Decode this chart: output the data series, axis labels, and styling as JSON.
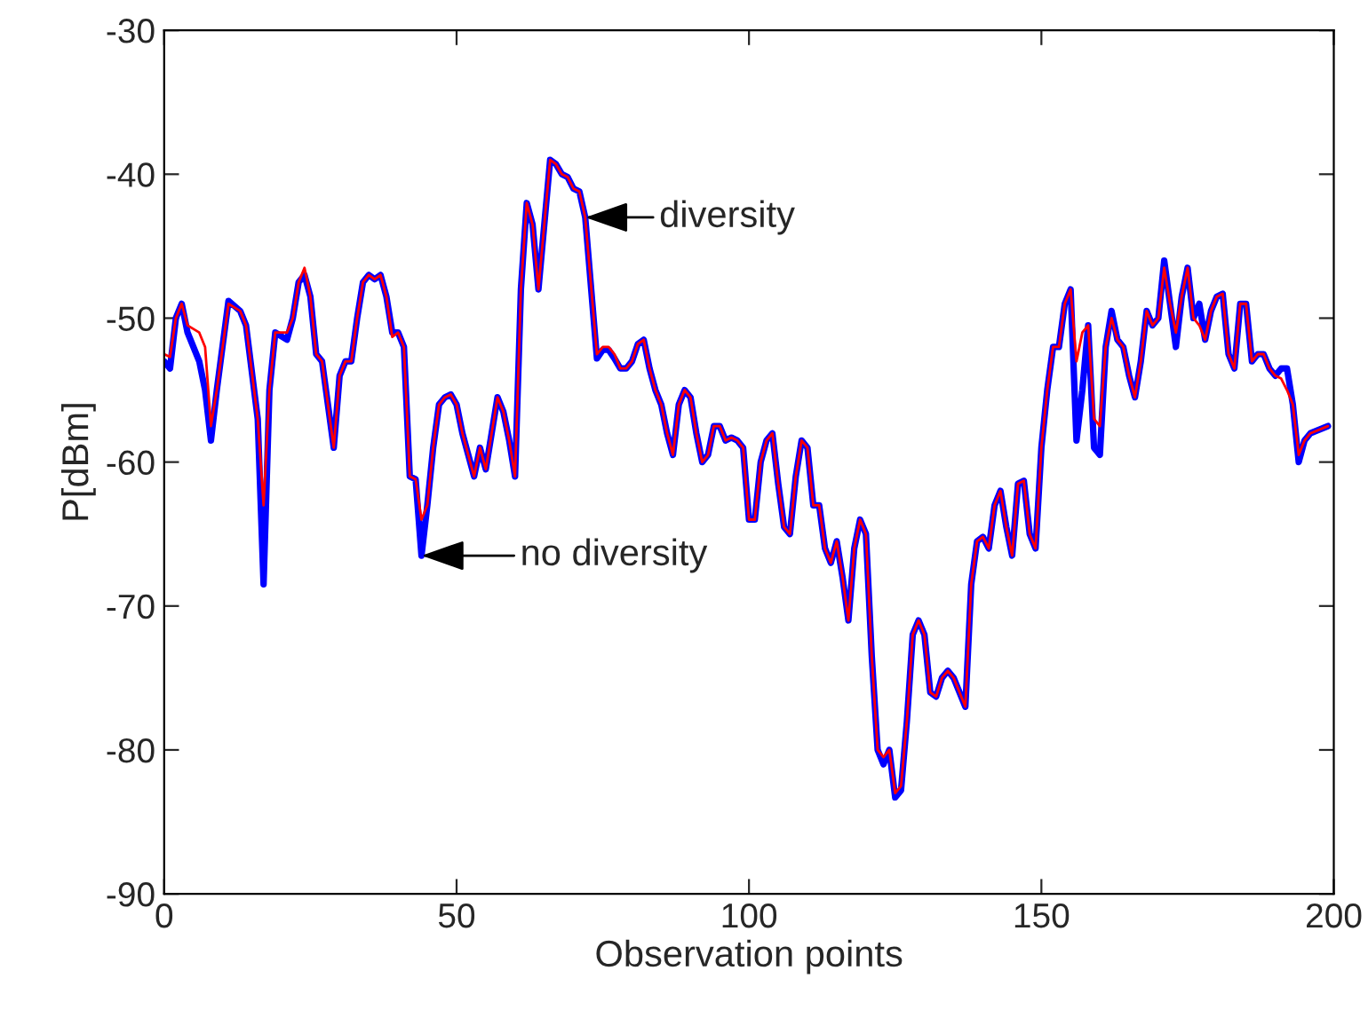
{
  "chart_data": {
    "type": "line",
    "xlabel": "Observation points",
    "ylabel": "P[dBm]",
    "x": [
      0,
      1,
      2,
      3,
      4,
      6,
      7,
      8,
      9,
      11,
      13,
      14,
      16,
      17,
      18,
      19,
      21,
      22,
      23,
      24,
      25,
      26,
      27,
      28,
      29,
      30,
      31,
      32,
      33,
      34,
      35,
      36,
      37,
      38,
      39,
      40,
      41,
      42,
      43,
      44,
      45,
      46,
      47,
      48,
      49,
      50,
      51,
      52,
      53,
      54,
      55,
      56,
      57,
      58,
      59,
      60,
      61,
      62,
      63,
      64,
      65,
      66,
      67,
      68,
      69,
      70,
      71,
      72,
      74,
      75,
      76,
      77,
      78,
      79,
      80,
      81,
      82,
      83,
      84,
      85,
      86,
      87,
      88,
      89,
      90,
      91,
      92,
      93,
      94,
      95,
      96,
      97,
      98,
      99,
      100,
      101,
      102,
      103,
      104,
      105,
      106,
      107,
      108,
      109,
      110,
      111,
      112,
      113,
      114,
      115,
      116,
      117,
      118,
      119,
      120,
      121,
      122,
      123,
      124,
      125,
      126,
      127,
      128,
      129,
      130,
      131,
      132,
      133,
      134,
      135,
      136,
      137,
      138,
      139,
      140,
      141,
      142,
      143,
      144,
      145,
      146,
      147,
      148,
      149,
      150,
      151,
      152,
      153,
      154,
      155,
      156,
      157,
      158,
      159,
      160,
      161,
      162,
      163,
      164,
      165,
      166,
      167,
      168,
      169,
      170,
      171,
      172,
      173,
      174,
      175,
      176,
      177,
      178,
      179,
      180,
      181,
      182,
      183,
      184,
      185,
      186,
      187,
      188,
      189,
      190,
      191,
      192,
      193,
      194,
      195,
      196,
      199
    ],
    "series": [
      {
        "color": "#0000ff",
        "values": [
          -53,
          -53.5,
          -50,
          -49,
          -51,
          -53,
          -55,
          -58.5,
          -55,
          -48.8,
          -49.5,
          -50.5,
          -57,
          -68.5,
          -55,
          -51,
          -51.5,
          -50,
          -47.5,
          -47,
          -48.5,
          -52.5,
          -53,
          -56,
          -59,
          -54,
          -53,
          -53,
          -50,
          -47.5,
          -47,
          -47.3,
          -47,
          -48.5,
          -51,
          -51,
          -52,
          -61,
          -61.2,
          -66.5,
          -63,
          -59,
          -56,
          -55.5,
          -55.3,
          -56,
          -58,
          -59.5,
          -61,
          -59,
          -60.5,
          -58,
          -55.5,
          -56.5,
          -58.5,
          -61,
          -48,
          -42,
          -43.5,
          -48,
          -43.5,
          -39,
          -39.3,
          -40,
          -40.2,
          -41,
          -41.2,
          -43,
          -52.8,
          -52.2,
          -52.2,
          -52.8,
          -53.5,
          -53.5,
          -53,
          -51.8,
          -51.5,
          -53.5,
          -55,
          -56,
          -58,
          -59.5,
          -56,
          -55,
          -55.5,
          -58,
          -60,
          -59.5,
          -57.5,
          -57.5,
          -58.5,
          -58.3,
          -58.5,
          -59,
          -64,
          -64,
          -60,
          -58.5,
          -58,
          -61.5,
          -64.5,
          -65,
          -61,
          -58.5,
          -59,
          -63,
          -63,
          -66,
          -67,
          -65.5,
          -68,
          -71,
          -66,
          -64,
          -65,
          -73.5,
          -80,
          -81,
          -80,
          -83.3,
          -82.8,
          -78,
          -72,
          -71,
          -72,
          -76,
          -76.3,
          -75,
          -74.5,
          -75,
          -76,
          -77,
          -68.5,
          -65.5,
          -65.2,
          -66,
          -63,
          -62,
          -64.5,
          -66.5,
          -61.5,
          -61.3,
          -65,
          -66,
          -59,
          -55,
          -52,
          -52,
          -49,
          -48,
          -58.5,
          -55,
          -50.5,
          -59,
          -59.5,
          -52,
          -49.5,
          -51.5,
          -52,
          -54,
          -55.5,
          -53,
          -49.5,
          -50.5,
          -50,
          -46,
          -49,
          -52,
          -48.5,
          -46.5,
          -50,
          -49,
          -51.5,
          -49.5,
          -48.5,
          -48.3,
          -52.5,
          -53.5,
          -49,
          -49,
          -53,
          -52.5,
          -52.5,
          -53.5,
          -54,
          -53.5,
          -53.5,
          -56,
          -60,
          -58.5,
          -58,
          -57.5
        ]
      },
      {
        "color": "#ff0000",
        "values": [
          -52.5,
          -52.7,
          -50,
          -49,
          -50.5,
          -51,
          -52,
          -57.5,
          -55,
          -49,
          -49.5,
          -50.5,
          -57,
          -63,
          -55,
          -51,
          -51,
          -50,
          -47.5,
          -46.5,
          -48.5,
          -52.5,
          -53,
          -56,
          -59,
          -54,
          -53,
          -53,
          -50,
          -47.5,
          -47,
          -47.3,
          -47,
          -48.5,
          -51.3,
          -51,
          -52,
          -61,
          -61.2,
          -64,
          -63,
          -59,
          -56,
          -55.5,
          -55.3,
          -56,
          -58,
          -59.5,
          -61,
          -59,
          -60.5,
          -58,
          -55.5,
          -56.5,
          -58.5,
          -61,
          -48,
          -42,
          -43.5,
          -48,
          -43.5,
          -39,
          -39.3,
          -40,
          -40.2,
          -41,
          -41.2,
          -43,
          -52.5,
          -52,
          -52,
          -52.5,
          -53.5,
          -53.5,
          -53,
          -51.8,
          -51.5,
          -53.5,
          -55,
          -56,
          -58,
          -59.5,
          -56,
          -55,
          -55.5,
          -58,
          -60,
          -59.5,
          -57.5,
          -57.5,
          -58.5,
          -58.3,
          -58.5,
          -59,
          -64,
          -64,
          -60,
          -58.5,
          -58,
          -61.5,
          -64.5,
          -65,
          -61,
          -58.5,
          -59,
          -63,
          -63,
          -66,
          -67,
          -65.5,
          -68,
          -71,
          -66,
          -64,
          -65,
          -73.5,
          -80,
          -80.5,
          -80,
          -83,
          -82.5,
          -78,
          -72,
          -71,
          -72,
          -76,
          -76.3,
          -75,
          -74.5,
          -75,
          -76,
          -77,
          -68.5,
          -65.5,
          -65.2,
          -66,
          -63,
          -62,
          -64.5,
          -66.5,
          -61.5,
          -61.3,
          -65,
          -66,
          -59,
          -55,
          -52,
          -52,
          -49,
          -48,
          -53,
          -51,
          -50.5,
          -57,
          -57.5,
          -52,
          -50,
          -51.5,
          -52,
          -54,
          -55.5,
          -53,
          -49.5,
          -50.5,
          -50,
          -46.5,
          -49,
          -51,
          -48.5,
          -46.5,
          -50,
          -50.5,
          -51.5,
          -49.5,
          -48.5,
          -48.3,
          -52.5,
          -53.5,
          -49,
          -49,
          -53,
          -52.5,
          -52.5,
          -53.5,
          -54,
          -54.2,
          -55,
          -56,
          -59.5,
          -58.5,
          -58,
          -57.5
        ]
      }
    ],
    "annotations": [
      {
        "text": "diversity",
        "x": 72,
        "y": -43
      },
      {
        "text": "no diversity",
        "x": 44,
        "y": -66.5
      }
    ],
    "xlim": [
      0,
      200
    ],
    "xticks": [
      0,
      50,
      100,
      150,
      200
    ],
    "ylim": [
      -90,
      -30
    ],
    "yticks": [
      -90,
      -80,
      -70,
      -60,
      -50,
      -40,
      -30
    ],
    "grid": false,
    "legend": false
  }
}
